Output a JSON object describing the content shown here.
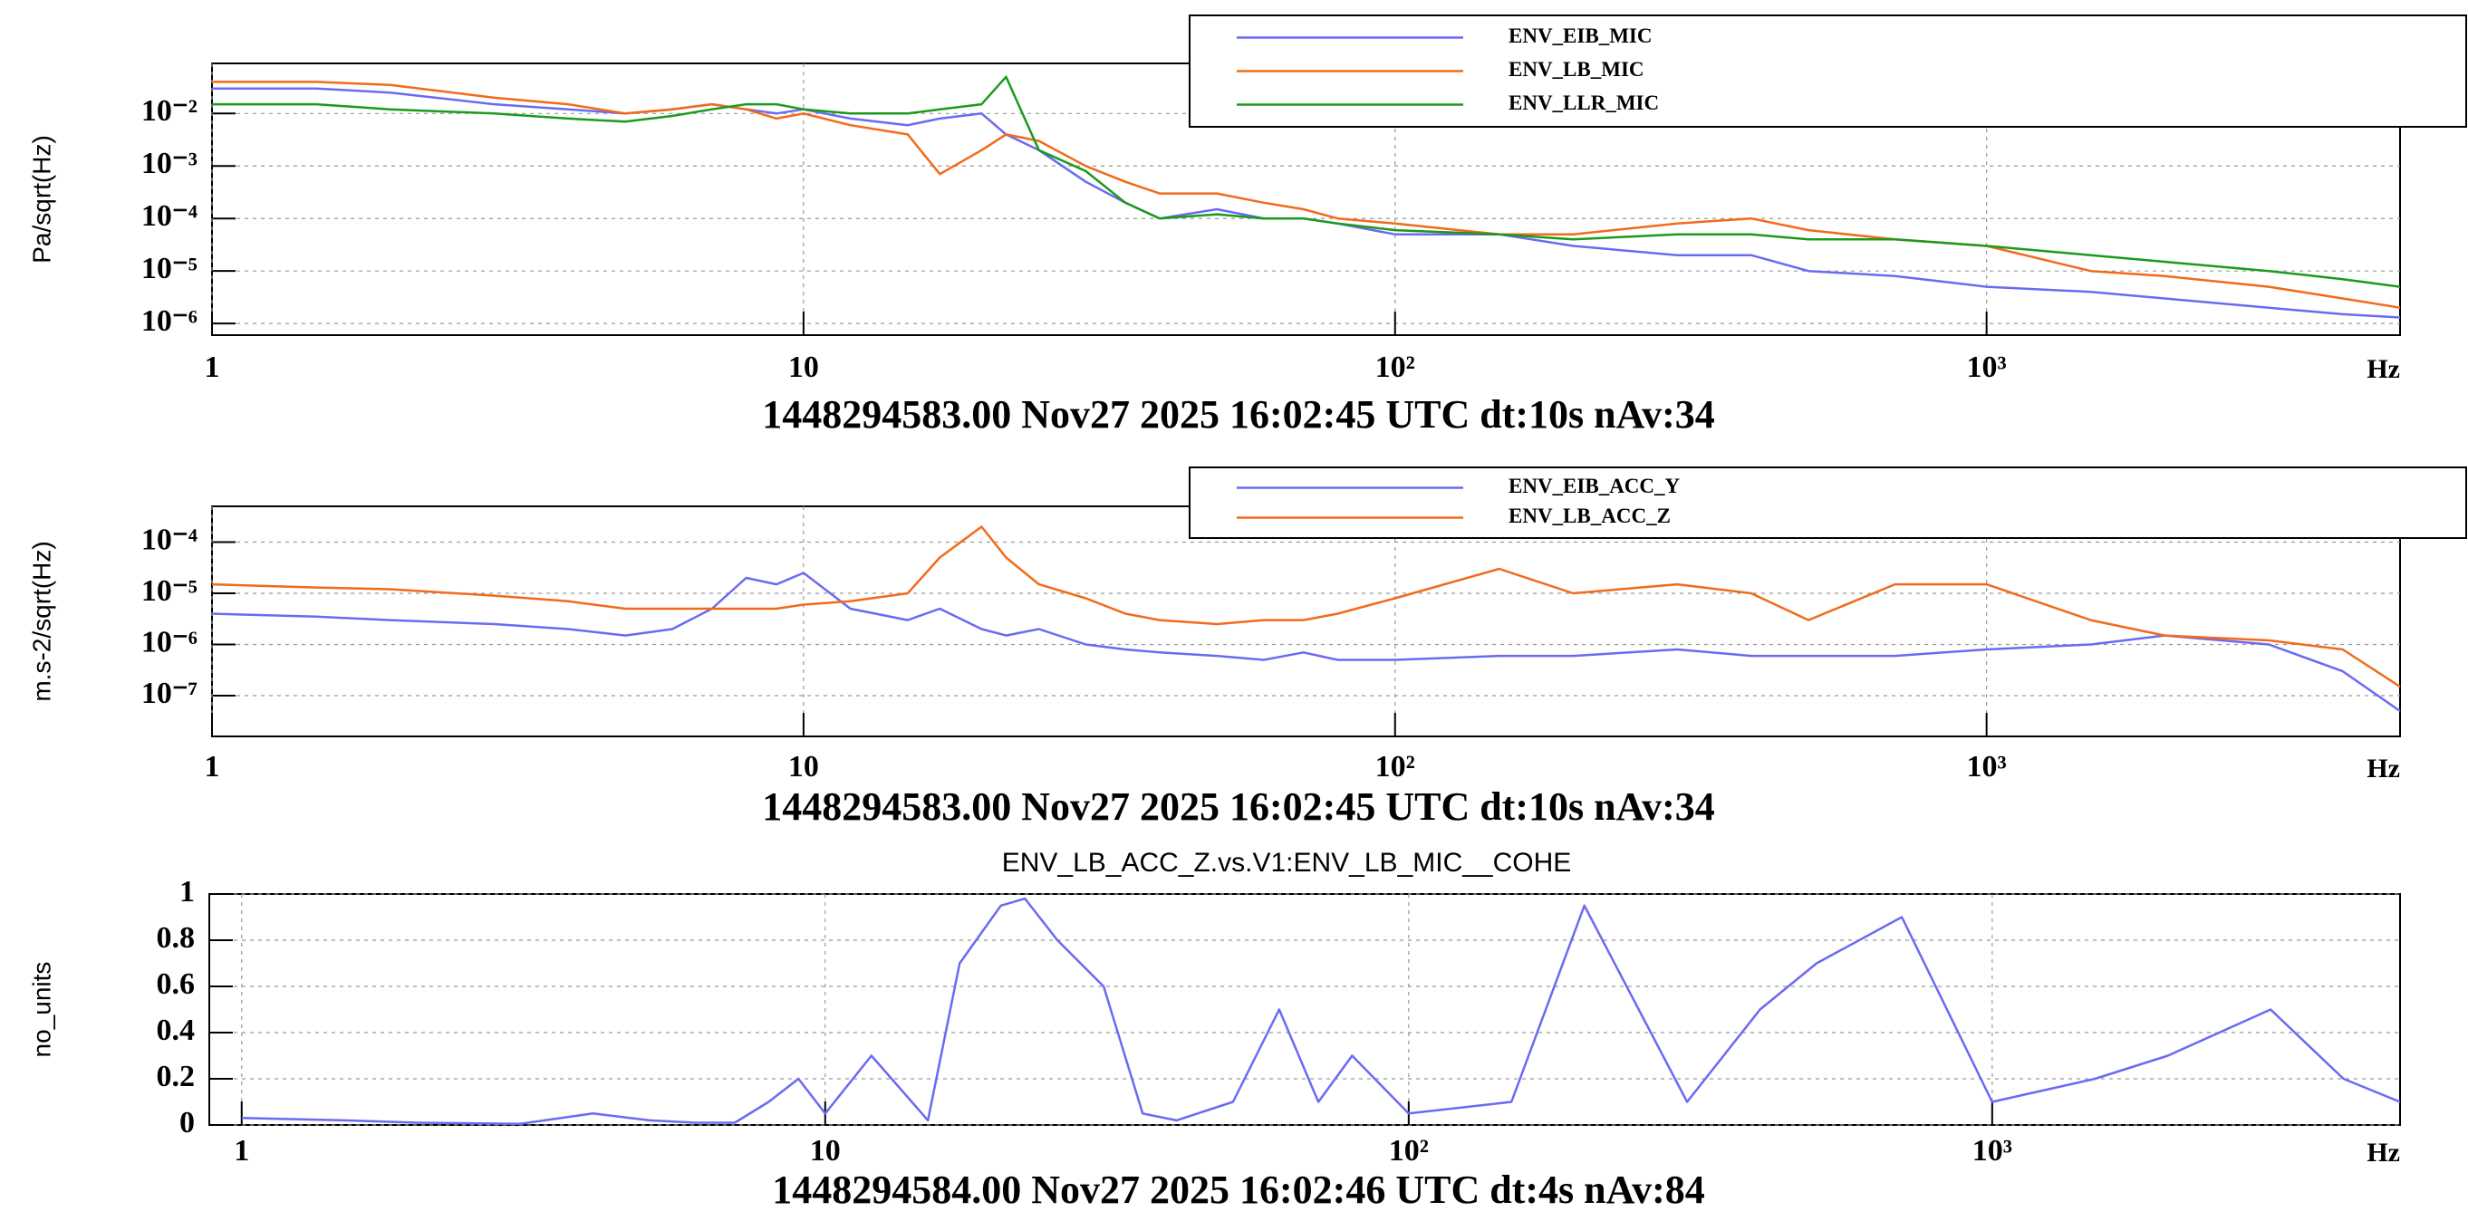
{
  "chart_data": [
    {
      "type": "line",
      "xlog": true,
      "ylog": true,
      "grid": true,
      "legend": "top-right",
      "ylabel": "Pa/sqrt(Hz)",
      "xlabel": "Hz",
      "subtitle": "1448294583.00 Nov27 2025 16:02:45 UTC dt:10s nAv:34",
      "xlim": [
        1,
        5000
      ],
      "ylim": [
        6e-07,
        0.09
      ],
      "xticks": [
        1,
        10,
        {
          "value": 100,
          "label": "10²"
        },
        {
          "value": 1000,
          "label": "10³"
        }
      ],
      "yticks": [
        {
          "value": 1e-06,
          "label": "10⁻⁶"
        },
        {
          "value": 1e-05,
          "label": "10⁻⁵"
        },
        {
          "value": 0.0001,
          "label": "10⁻⁴"
        },
        {
          "value": 0.001,
          "label": "10⁻³"
        },
        {
          "value": 0.01,
          "label": "10⁻²"
        }
      ],
      "x": [
        1,
        1.5,
        2,
        3,
        4,
        5,
        6,
        7,
        8,
        9,
        10,
        12,
        15,
        17,
        20,
        22,
        25,
        30,
        35,
        40,
        50,
        60,
        70,
        80,
        100,
        150,
        200,
        300,
        400,
        500,
        700,
        1000,
        1500,
        2000,
        3000,
        4000,
        5000
      ],
      "series": [
        {
          "name": "ENV_EIB_MIC",
          "color": "#6a6af2",
          "values": [
            0.03,
            0.03,
            0.025,
            0.015,
            0.012,
            0.01,
            0.012,
            0.015,
            0.012,
            0.01,
            0.012,
            0.008,
            0.006,
            0.008,
            0.01,
            0.004,
            0.002,
            0.0005,
            0.0002,
            0.0001,
            0.00015,
            0.0001,
            0.0001,
            8e-05,
            5e-05,
            5e-05,
            3e-05,
            2e-05,
            2e-05,
            1e-05,
            8e-06,
            5e-06,
            4e-06,
            3e-06,
            2e-06,
            1.5e-06,
            1.3e-06
          ]
        },
        {
          "name": "ENV_LB_MIC",
          "color": "#f26a1b",
          "values": [
            0.04,
            0.04,
            0.035,
            0.02,
            0.015,
            0.01,
            0.012,
            0.015,
            0.012,
            0.008,
            0.01,
            0.006,
            0.004,
            0.0007,
            0.002,
            0.004,
            0.003,
            0.001,
            0.0005,
            0.0003,
            0.0003,
            0.0002,
            0.00015,
            0.0001,
            8e-05,
            5e-05,
            5e-05,
            8e-05,
            0.0001,
            6e-05,
            4e-05,
            3e-05,
            1e-05,
            8e-06,
            5e-06,
            3e-06,
            2e-06
          ]
        },
        {
          "name": "ENV_LLR_MIC",
          "color": "#1b9a1b",
          "values": [
            0.015,
            0.015,
            0.012,
            0.01,
            0.008,
            0.007,
            0.009,
            0.012,
            0.015,
            0.015,
            0.012,
            0.01,
            0.01,
            0.012,
            0.015,
            0.05,
            0.002,
            0.0008,
            0.0002,
            0.0001,
            0.00012,
            0.0001,
            0.0001,
            8e-05,
            6e-05,
            5e-05,
            4e-05,
            5e-05,
            5e-05,
            4e-05,
            4e-05,
            3e-05,
            2e-05,
            1.5e-05,
            1e-05,
            7e-06,
            5e-06
          ]
        }
      ]
    },
    {
      "type": "line",
      "xlog": true,
      "ylog": true,
      "grid": true,
      "legend": "top-right",
      "ylabel": "m.s-2/sqrt(Hz)",
      "xlabel": "Hz",
      "subtitle": "1448294583.00 Nov27 2025 16:02:45 UTC dt:10s nAv:34",
      "xlim": [
        1,
        5000
      ],
      "ylim": [
        1.6e-08,
        0.0005
      ],
      "xticks": [
        1,
        10,
        {
          "value": 100,
          "label": "10²"
        },
        {
          "value": 1000,
          "label": "10³"
        }
      ],
      "yticks": [
        {
          "value": 1e-07,
          "label": "10⁻⁷"
        },
        {
          "value": 1e-06,
          "label": "10⁻⁶"
        },
        {
          "value": 1e-05,
          "label": "10⁻⁵"
        },
        {
          "value": 0.0001,
          "label": "10⁻⁴"
        }
      ],
      "x": [
        1,
        1.5,
        2,
        3,
        4,
        5,
        6,
        7,
        8,
        9,
        10,
        12,
        15,
        17,
        20,
        22,
        25,
        30,
        35,
        40,
        50,
        60,
        70,
        80,
        100,
        150,
        200,
        300,
        400,
        500,
        700,
        1000,
        1500,
        2000,
        3000,
        4000,
        5000
      ],
      "series": [
        {
          "name": "ENV_EIB_ACC_Y",
          "color": "#6a6af2",
          "values": [
            4e-06,
            3.5e-06,
            3e-06,
            2.5e-06,
            2e-06,
            1.5e-06,
            2e-06,
            5e-06,
            2e-05,
            1.5e-05,
            2.5e-05,
            5e-06,
            3e-06,
            5e-06,
            2e-06,
            1.5e-06,
            2e-06,
            1e-06,
            8e-07,
            7e-07,
            6e-07,
            5e-07,
            7e-07,
            5e-07,
            5e-07,
            6e-07,
            6e-07,
            8e-07,
            6e-07,
            6e-07,
            6e-07,
            8e-07,
            1e-06,
            1.5e-06,
            1e-06,
            3e-07,
            5e-08
          ]
        },
        {
          "name": "ENV_LB_ACC_Z",
          "color": "#f26a1b",
          "values": [
            1.5e-05,
            1.3e-05,
            1.2e-05,
            9e-06,
            7e-06,
            5e-06,
            5e-06,
            5e-06,
            5e-06,
            5e-06,
            6e-06,
            7e-06,
            1e-05,
            5e-05,
            0.0002,
            5e-05,
            1.5e-05,
            8e-06,
            4e-06,
            3e-06,
            2.5e-06,
            3e-06,
            3e-06,
            4e-06,
            8e-06,
            3e-05,
            1e-05,
            1.5e-05,
            1e-05,
            3e-06,
            1.5e-05,
            1.5e-05,
            3e-06,
            1.5e-06,
            1.2e-06,
            8e-07,
            1.5e-07
          ]
        }
      ]
    },
    {
      "type": "line",
      "xlog": true,
      "ylog": false,
      "grid": true,
      "title": "ENV_LB_ACC_Z.vs.V1:ENV_LB_MIC__COHE",
      "ylabel": "no_units",
      "xlabel": "Hz",
      "subtitle": "1448294584.00 Nov27 2025 16:02:46 UTC dt:4s nAv:84",
      "xlim": [
        0.88,
        5000
      ],
      "ylim": [
        0,
        1
      ],
      "xticks": [
        1,
        10,
        {
          "value": 100,
          "label": "10²"
        },
        {
          "value": 1000,
          "label": "10³"
        }
      ],
      "yticks": [
        0,
        0.2,
        0.4,
        0.6,
        0.8,
        1
      ],
      "x": [
        1,
        1.5,
        2,
        3,
        4,
        5,
        6,
        7,
        8,
        9,
        10,
        12,
        15,
        17,
        20,
        22,
        25,
        30,
        35,
        40,
        50,
        60,
        70,
        80,
        100,
        150,
        200,
        300,
        400,
        500,
        700,
        1000,
        1500,
        2000,
        3000,
        4000,
        5000
      ],
      "series": [
        {
          "name": "COHE",
          "color": "#6a6af2",
          "values": [
            0.03,
            0.02,
            0.01,
            0.005,
            0.05,
            0.02,
            0.01,
            0.01,
            0.1,
            0.2,
            0.05,
            0.3,
            0.02,
            0.7,
            0.95,
            0.98,
            0.8,
            0.6,
            0.05,
            0.02,
            0.1,
            0.5,
            0.1,
            0.3,
            0.05,
            0.1,
            0.95,
            0.1,
            0.5,
            0.7,
            0.9,
            0.1,
            0.2,
            0.3,
            0.5,
            0.2,
            0.1
          ]
        }
      ]
    }
  ]
}
